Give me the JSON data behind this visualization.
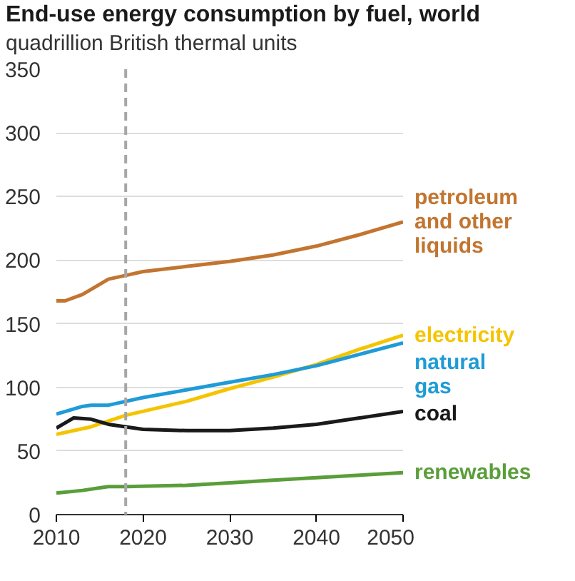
{
  "chart_data": {
    "type": "line",
    "title": "End-use energy consumption by fuel, world",
    "subtitle": "quadrillion British thermal units",
    "xlim": [
      2010,
      2050
    ],
    "xticks": [
      2010,
      2020,
      2030,
      2040,
      2050
    ],
    "ylim": [
      0,
      350
    ],
    "yticks": [
      0,
      50,
      100,
      150,
      200,
      250,
      300,
      350
    ],
    "grid": "y",
    "legend": false,
    "line_style": "solid",
    "ref_lines": [
      {
        "axis": "x",
        "value": 2018,
        "label": null,
        "color": "#a6a6a6",
        "line_style": "dashed"
      }
    ],
    "series": [
      {
        "name": "petroleum\nand other\nliquids",
        "color": "#c27530",
        "x": [
          2010,
          2011,
          2013,
          2015,
          2016,
          2018,
          2020,
          2025,
          2030,
          2035,
          2040,
          2045,
          2050
        ],
        "values": [
          168,
          168,
          173,
          181,
          185,
          188,
          191,
          195,
          199,
          204,
          211,
          220,
          230
        ]
      },
      {
        "name": "electricity",
        "color": "#f5c400",
        "x": [
          2010,
          2014,
          2018,
          2025,
          2030,
          2035,
          2040,
          2045,
          2050
        ],
        "values": [
          63,
          69,
          78,
          89,
          99,
          108,
          118,
          130,
          141
        ]
      },
      {
        "name": "natural\ngas",
        "color": "#1f9bd7",
        "x": [
          2010,
          2011,
          2013,
          2014,
          2016,
          2018,
          2020,
          2025,
          2030,
          2035,
          2040,
          2045,
          2050
        ],
        "values": [
          79,
          81,
          85,
          86,
          86,
          89,
          92,
          98,
          104,
          110,
          117,
          126,
          135
        ]
      },
      {
        "name": "coal",
        "color": "#1a1a1a",
        "x": [
          2010,
          2011,
          2012,
          2014,
          2015,
          2016,
          2018,
          2020,
          2025,
          2030,
          2035,
          2040,
          2045,
          2050
        ],
        "values": [
          68,
          72,
          76,
          75,
          73,
          71,
          69,
          67,
          66,
          66,
          68,
          71,
          76,
          81
        ]
      },
      {
        "name": "renewables",
        "color": "#5a9e3a",
        "x": [
          2010,
          2013,
          2015,
          2016,
          2018,
          2025,
          2030,
          2035,
          2040,
          2045,
          2050
        ],
        "values": [
          17,
          19,
          21,
          22,
          22,
          23,
          25,
          27,
          29,
          31,
          33
        ]
      }
    ]
  }
}
